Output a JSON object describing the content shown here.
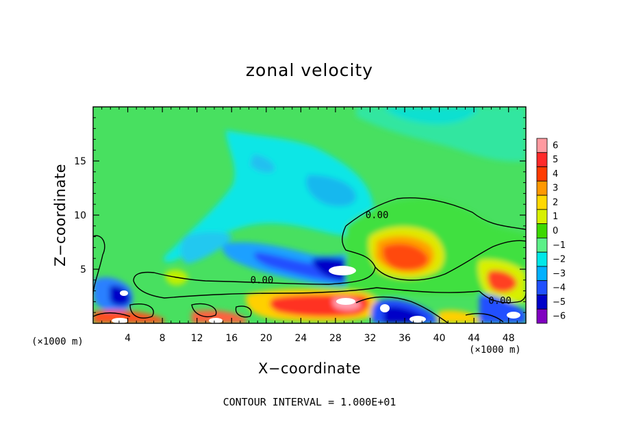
{
  "chart_data": {
    "type": "heatmap",
    "title": "zonal velocity",
    "xlabel": "X−coordinate",
    "ylabel": "Z−coordinate",
    "x_unit_left": "(×1000 m)",
    "x_unit_right": "(×1000 m)",
    "xlim": [
      0,
      50
    ],
    "ylim": [
      0,
      20
    ],
    "x_ticks": [
      4,
      8,
      12,
      16,
      20,
      24,
      28,
      32,
      36,
      40,
      44,
      48
    ],
    "y_ticks": [
      5,
      10,
      15
    ],
    "colorbar": {
      "levels": [
        6,
        5,
        4,
        3,
        2,
        1,
        0,
        -1,
        -2,
        -3,
        -4,
        -5,
        -6
      ],
      "labels": [
        "6",
        "5",
        "4",
        "3",
        "2",
        "1",
        "0",
        "−1",
        "−2",
        "−3",
        "−4",
        "−5",
        "−6"
      ],
      "colors": [
        "#ff9aa0",
        "#ff2a2a",
        "#ff3b00",
        "#ff9800",
        "#ffd800",
        "#d8f000",
        "#3cd800",
        "#5cf088",
        "#00e8e8",
        "#00b0ff",
        "#2050ff",
        "#0000c8",
        "#8000c0"
      ]
    },
    "contour_labels": [
      "0.00",
      "0.00",
      "0.00"
    ],
    "contour_level": 0.0,
    "blobs": [
      {
        "x": 4,
        "z": 2.8,
        "value": -5.5
      },
      {
        "x": 3.5,
        "z": 0.5,
        "value": 6
      },
      {
        "x": 13,
        "z": 0.5,
        "value": 5
      },
      {
        "x": 27.5,
        "z": 5.1,
        "value": -6
      },
      {
        "x": 24,
        "z": 1.5,
        "value": 4.5
      },
      {
        "x": 29,
        "z": 2.0,
        "value": 5.5
      },
      {
        "x": 36,
        "z": 6.0,
        "value": 4
      },
      {
        "x": 47,
        "z": 3.8,
        "value": 3
      },
      {
        "x": 36,
        "z": 1.0,
        "value": -5
      },
      {
        "x": 27,
        "z": 13,
        "value": -3
      },
      {
        "x": 12,
        "z": 6.5,
        "value": -2
      }
    ]
  },
  "footnote": "CONTOUR INTERVAL = 1.000E+01"
}
